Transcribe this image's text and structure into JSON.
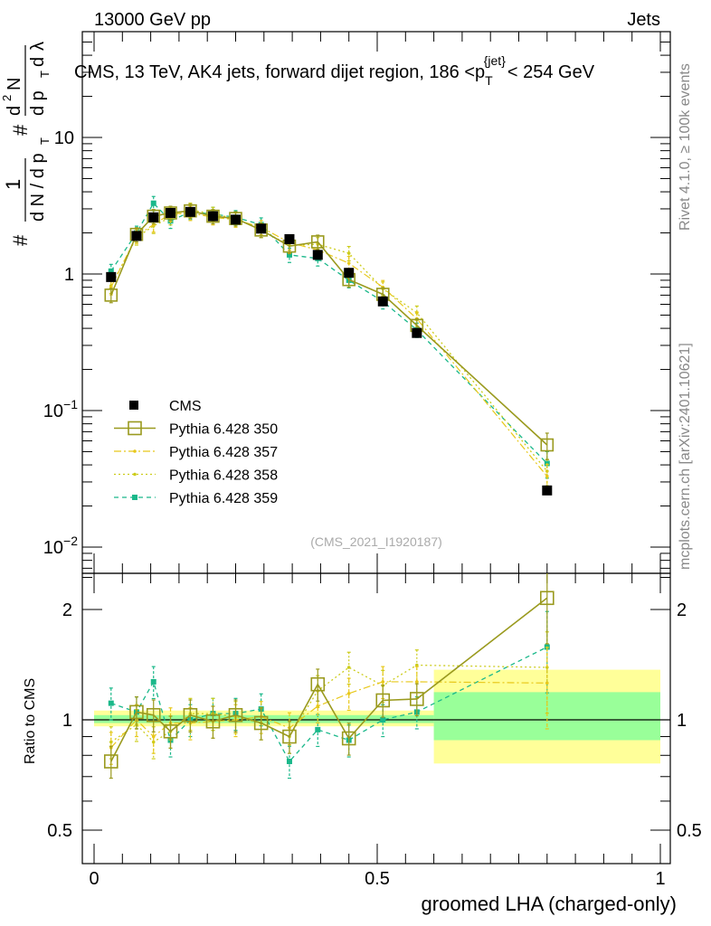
{
  "header": {
    "left": "13000 GeV pp",
    "right": "Jets"
  },
  "title": {
    "main": "CMS, 13 TeV, AK4 jets, forward dijet region, 186 <p",
    "sub": "T",
    "sup": "{jet}",
    "tail": "< 254 GeV"
  },
  "side_labels": {
    "rivet": "Rivet 4.1.0, ≥ 100k events",
    "mcplots": "mcplots.cern.ch [arXiv:2401.10621]"
  },
  "watermark": "(CMS_2021_I1920187)",
  "ylabel_main": {
    "pieces": [
      "#",
      "1",
      "d N / d p",
      "T",
      "#",
      "d",
      "2",
      "N",
      "d p",
      "T",
      "d",
      "λ"
    ]
  },
  "ylabel_ratio": "Ratio to CMS",
  "xlabel": "groomed LHA (charged-only)",
  "chart_data": [
    {
      "type": "scatter",
      "panel": "main",
      "title": "CMS, 13 TeV, AK4 jets, forward dijet region, 186 < pT{jet} < 254 GeV",
      "xlabel": "groomed LHA (charged-only)",
      "ylabel": "1/(dN/dpT) d2N/(dpT dλ)",
      "yscale": "log",
      "xlim": [
        0,
        1
      ],
      "ylim": [
        0.006,
        50
      ],
      "yticks": [
        {
          "v": 0.01,
          "base": "10",
          "exp": "−2"
        },
        {
          "v": 0.1,
          "base": "10",
          "exp": "−1"
        },
        {
          "v": 1,
          "base": "1",
          "exp": ""
        },
        {
          "v": 10,
          "base": "10",
          "exp": ""
        }
      ],
      "xticks": [
        {
          "v": 0,
          "label": "0"
        },
        {
          "v": 0.5,
          "label": "0.5"
        },
        {
          "v": 1,
          "label": "1"
        }
      ],
      "x": [
        0.03,
        0.075,
        0.105,
        0.135,
        0.17,
        0.21,
        0.25,
        0.295,
        0.345,
        0.395,
        0.45,
        0.51,
        0.57,
        0.8
      ],
      "series": [
        {
          "name": "CMS",
          "color": "#000000",
          "style": "data",
          "values": [
            0.95,
            1.9,
            2.6,
            2.8,
            2.85,
            2.65,
            2.5,
            2.15,
            1.8,
            1.38,
            1.02,
            0.63,
            0.37,
            0.026
          ]
        },
        {
          "name": "Pythia 6.428 350",
          "color": "#9a9a1e",
          "style": "open-square-solid",
          "values": [
            0.7,
            1.95,
            2.65,
            2.8,
            2.9,
            2.65,
            2.55,
            2.1,
            1.6,
            1.72,
            0.91,
            0.71,
            0.42,
            0.056
          ]
        },
        {
          "name": "Pythia 6.428 357",
          "color": "#e8c81a",
          "style": "dashdot",
          "values": [
            0.8,
            1.9,
            2.3,
            2.75,
            2.8,
            2.6,
            2.5,
            2.2,
            1.7,
            1.5,
            1.2,
            0.8,
            0.47,
            0.033
          ]
        },
        {
          "name": "Pythia 6.428 358",
          "color": "#cccc1a",
          "style": "dotted",
          "values": [
            0.82,
            1.85,
            2.25,
            2.6,
            2.95,
            2.75,
            2.55,
            2.1,
            1.62,
            1.65,
            1.42,
            0.78,
            0.52,
            0.036
          ]
        },
        {
          "name": "Pythia 6.428 359",
          "color": "#1ab88a",
          "style": "dashed-filled",
          "values": [
            1.05,
            2.0,
            3.3,
            2.45,
            2.85,
            2.75,
            2.6,
            2.3,
            1.38,
            1.3,
            0.9,
            0.63,
            0.39,
            0.041
          ]
        }
      ],
      "legend": {
        "placement": "lower-left",
        "entries": [
          "CMS",
          "Pythia 6.428 350",
          "Pythia 6.428 357",
          "Pythia 6.428 358",
          "Pythia 6.428 359"
        ]
      }
    },
    {
      "type": "line",
      "panel": "ratio",
      "ylabel": "Ratio to CMS",
      "yscale": "log",
      "ylim": [
        0.4,
        2.4
      ],
      "yticks": [
        {
          "v": 0.5,
          "label": "0.5"
        },
        {
          "v": 1,
          "label": "1"
        },
        {
          "v": 2,
          "label": "2"
        }
      ],
      "x": [
        0.03,
        0.075,
        0.105,
        0.135,
        0.17,
        0.21,
        0.25,
        0.295,
        0.345,
        0.395,
        0.45,
        0.51,
        0.57,
        0.8
      ],
      "uncertainty_bands": [
        {
          "x0": 0.0,
          "x1": 0.6,
          "yellow": [
            0.96,
            1.06
          ],
          "green": [
            0.98,
            1.03
          ]
        },
        {
          "x0": 0.6,
          "x1": 1.0,
          "yellow": [
            0.76,
            1.37
          ],
          "green": [
            0.88,
            1.19
          ]
        }
      ],
      "series": [
        {
          "name": "Pythia 6.428 350",
          "values": [
            0.77,
            1.05,
            1.03,
            0.93,
            1.03,
            0.99,
            1.03,
            0.98,
            0.9,
            1.25,
            0.89,
            1.13,
            1.14,
            2.15
          ]
        },
        {
          "name": "Pythia 6.428 357",
          "values": [
            0.84,
            1.0,
            0.9,
            0.98,
            0.98,
            0.99,
            1.0,
            1.02,
            0.95,
            1.09,
            1.18,
            1.27,
            1.27,
            1.26
          ]
        },
        {
          "name": "Pythia 6.428 358",
          "values": [
            0.87,
            0.97,
            0.87,
            0.93,
            1.04,
            1.04,
            1.02,
            0.98,
            0.9,
            1.2,
            1.39,
            1.24,
            1.41,
            1.39
          ]
        },
        {
          "name": "Pythia 6.428 359",
          "values": [
            1.11,
            1.05,
            1.27,
            0.88,
            1.0,
            1.04,
            1.04,
            1.07,
            0.77,
            0.94,
            0.88,
            1.0,
            1.05,
            1.58
          ]
        }
      ]
    }
  ]
}
